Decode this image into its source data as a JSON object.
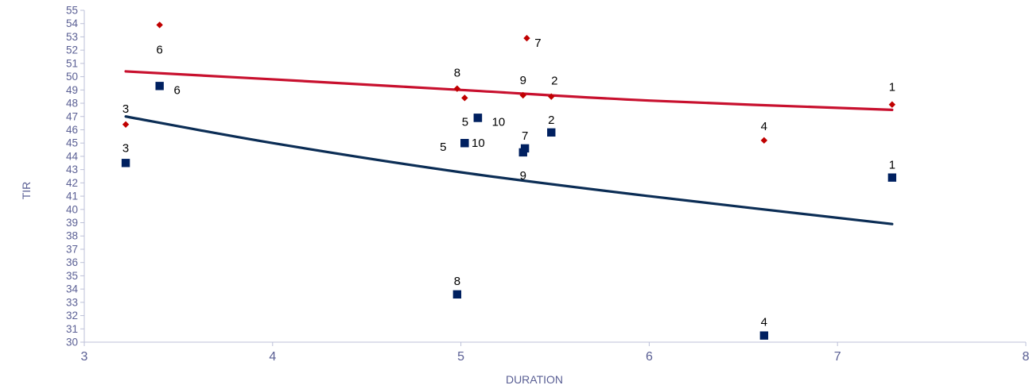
{
  "chart_data": {
    "type": "scatter",
    "xlabel": "DURATION",
    "ylabel": "TIR",
    "xlim": [
      3,
      8
    ],
    "ylim": [
      30,
      55
    ],
    "xticks": [
      "3",
      "4",
      "5",
      "6",
      "7",
      "8"
    ],
    "yticks": [
      "30",
      "31",
      "32",
      "33",
      "34",
      "35",
      "36",
      "37",
      "38",
      "39",
      "40",
      "41",
      "42",
      "43",
      "44",
      "45",
      "46",
      "47",
      "48",
      "49",
      "50",
      "51",
      "52",
      "53",
      "54",
      "55"
    ],
    "grid": false,
    "legend": "none",
    "series": [
      {
        "marker": "diamond",
        "color": "#c00000",
        "points": [
          {
            "x": 7.29,
            "y": 47.9,
            "label": "1"
          },
          {
            "x": 5.48,
            "y": 48.5,
            "label": "2"
          },
          {
            "x": 3.22,
            "y": 46.4,
            "label": "3"
          },
          {
            "x": 6.61,
            "y": 45.2,
            "label": "4"
          },
          {
            "x": 3.4,
            "y": 53.9,
            "label": "6"
          },
          {
            "x": 5.35,
            "y": 52.9,
            "label": "7"
          },
          {
            "x": 4.98,
            "y": 49.1,
            "label": "8"
          },
          {
            "x": 5.33,
            "y": 48.6,
            "label": "9"
          },
          {
            "x": 5.02,
            "y": 48.4,
            "label": ""
          }
        ]
      },
      {
        "marker": "square",
        "color": "#002060",
        "points": [
          {
            "x": 7.29,
            "y": 42.4,
            "label": "1"
          },
          {
            "x": 5.48,
            "y": 45.8,
            "label": "2"
          },
          {
            "x": 3.22,
            "y": 43.5,
            "label": "3"
          },
          {
            "x": 6.61,
            "y": 30.5,
            "label": "4"
          },
          {
            "x": 5.02,
            "y": 45.0,
            "label": "5"
          },
          {
            "x": 5.09,
            "y": 46.9,
            "label": "5"
          },
          {
            "x": 3.4,
            "y": 49.3,
            "label": "6"
          },
          {
            "x": 5.34,
            "y": 44.6,
            "label": "7"
          },
          {
            "x": 4.98,
            "y": 33.6,
            "label": "8"
          },
          {
            "x": 5.33,
            "y": 44.3,
            "label": "9"
          },
          {
            "x": 5.09,
            "y": 46.9,
            "label": "10"
          },
          {
            "x": 5.02,
            "y": 45.0,
            "label": "10"
          }
        ]
      }
    ],
    "trendlines": [
      {
        "color": "#c8102e",
        "points": [
          [
            3.22,
            50.4
          ],
          [
            4.0,
            49.8
          ],
          [
            5.0,
            49.0
          ],
          [
            6.0,
            48.2
          ],
          [
            7.29,
            47.5
          ]
        ]
      },
      {
        "color": "#0b2d55",
        "points": [
          [
            3.22,
            47.0
          ],
          [
            4.0,
            45.0
          ],
          [
            5.0,
            42.8
          ],
          [
            6.0,
            41.0
          ],
          [
            7.29,
            38.9
          ]
        ]
      }
    ]
  }
}
